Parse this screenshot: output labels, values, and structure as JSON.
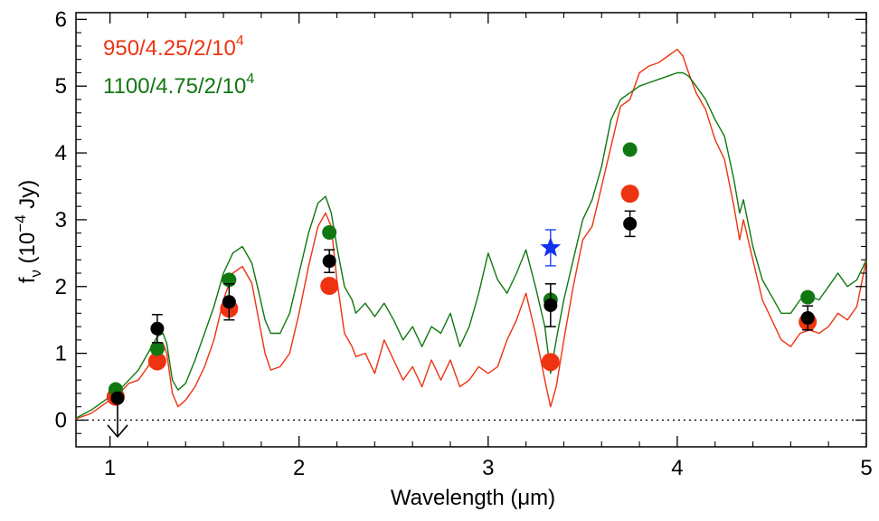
{
  "chart_data": {
    "type": "line",
    "xlabel": "Wavelength (μm)",
    "ylabel_main": "f",
    "ylabel_sub": "ν",
    "ylabel_rest": " (10",
    "ylabel_exp": "−4",
    "ylabel_unit": " Jy)",
    "xlim": [
      0.82,
      5.0
    ],
    "ylim": [
      -0.4,
      6.1
    ],
    "xticks": [
      1,
      2,
      3,
      4,
      5
    ],
    "yticks": [
      0,
      1,
      2,
      3,
      4,
      5,
      6
    ],
    "zero_line": true,
    "legend": [
      {
        "label_main": "950/4.25/2/10",
        "label_sup": "4",
        "color": "#ee3311"
      },
      {
        "label_main": "1100/4.75/2/10",
        "label_sup": "4",
        "color": "#117711"
      }
    ],
    "series": [
      {
        "color": "#ee3311",
        "x": [
          0.82,
          0.9,
          1.0,
          1.05,
          1.1,
          1.15,
          1.2,
          1.25,
          1.28,
          1.3,
          1.33,
          1.36,
          1.4,
          1.45,
          1.5,
          1.55,
          1.6,
          1.65,
          1.7,
          1.75,
          1.78,
          1.82,
          1.85,
          1.9,
          1.95,
          2.0,
          2.05,
          2.1,
          2.14,
          2.17,
          2.2,
          2.24,
          2.28,
          2.3,
          2.35,
          2.4,
          2.45,
          2.5,
          2.55,
          2.6,
          2.65,
          2.7,
          2.75,
          2.8,
          2.85,
          2.9,
          2.95,
          3.0,
          3.05,
          3.1,
          3.15,
          3.2,
          3.25,
          3.3,
          3.33,
          3.36,
          3.4,
          3.45,
          3.5,
          3.55,
          3.6,
          3.65,
          3.7,
          3.75,
          3.8,
          3.85,
          3.9,
          3.95,
          4.0,
          4.03,
          4.06,
          4.1,
          4.15,
          4.2,
          4.25,
          4.3,
          4.33,
          4.35,
          4.4,
          4.45,
          4.5,
          4.55,
          4.6,
          4.65,
          4.7,
          4.75,
          4.8,
          4.85,
          4.9,
          4.95,
          5.0
        ],
        "y": [
          0.02,
          0.1,
          0.3,
          0.4,
          0.55,
          0.6,
          0.8,
          1.05,
          1.15,
          1.0,
          0.4,
          0.2,
          0.3,
          0.5,
          0.8,
          1.2,
          1.8,
          2.2,
          2.3,
          2.05,
          1.6,
          1.0,
          0.75,
          0.8,
          1.0,
          1.6,
          2.3,
          2.9,
          3.1,
          2.9,
          2.1,
          1.3,
          1.1,
          0.95,
          1.0,
          0.7,
          1.2,
          0.9,
          0.6,
          0.8,
          0.5,
          0.9,
          0.6,
          0.9,
          0.5,
          0.6,
          0.8,
          0.7,
          0.8,
          1.2,
          1.5,
          1.9,
          1.3,
          0.6,
          0.2,
          0.5,
          1.2,
          2.0,
          2.7,
          2.9,
          3.5,
          4.1,
          4.7,
          4.8,
          5.2,
          5.3,
          5.35,
          5.45,
          5.55,
          5.45,
          5.2,
          4.9,
          4.65,
          4.2,
          3.9,
          3.2,
          2.7,
          3.0,
          2.4,
          1.8,
          1.5,
          1.2,
          1.1,
          1.3,
          1.35,
          1.3,
          1.4,
          1.6,
          1.5,
          1.7,
          2.4
        ]
      },
      {
        "color": "#117711",
        "x": [
          0.82,
          0.9,
          1.0,
          1.05,
          1.1,
          1.15,
          1.2,
          1.25,
          1.28,
          1.3,
          1.33,
          1.36,
          1.4,
          1.45,
          1.5,
          1.55,
          1.6,
          1.65,
          1.7,
          1.75,
          1.78,
          1.82,
          1.85,
          1.9,
          1.95,
          2.0,
          2.05,
          2.1,
          2.14,
          2.17,
          2.2,
          2.24,
          2.28,
          2.3,
          2.35,
          2.4,
          2.45,
          2.5,
          2.55,
          2.6,
          2.65,
          2.7,
          2.75,
          2.8,
          2.85,
          2.9,
          2.95,
          3.0,
          3.05,
          3.1,
          3.15,
          3.2,
          3.25,
          3.3,
          3.33,
          3.36,
          3.4,
          3.45,
          3.5,
          3.55,
          3.6,
          3.65,
          3.7,
          3.75,
          3.8,
          3.85,
          3.9,
          3.95,
          4.0,
          4.03,
          4.06,
          4.1,
          4.15,
          4.2,
          4.25,
          4.3,
          4.33,
          4.35,
          4.4,
          4.45,
          4.5,
          4.55,
          4.6,
          4.65,
          4.7,
          4.75,
          4.8,
          4.85,
          4.9,
          4.95,
          5.0
        ],
        "y": [
          0.03,
          0.15,
          0.35,
          0.45,
          0.6,
          0.75,
          1.0,
          1.25,
          1.3,
          1.15,
          0.6,
          0.45,
          0.55,
          0.9,
          1.3,
          1.7,
          2.2,
          2.5,
          2.6,
          2.35,
          2.0,
          1.5,
          1.3,
          1.3,
          1.6,
          2.2,
          2.8,
          3.25,
          3.35,
          3.1,
          2.6,
          2.0,
          1.8,
          1.6,
          1.75,
          1.55,
          1.75,
          1.5,
          1.2,
          1.4,
          1.1,
          1.4,
          1.3,
          1.6,
          1.1,
          1.4,
          1.9,
          2.5,
          2.1,
          1.9,
          2.2,
          2.55,
          2.0,
          1.4,
          0.7,
          1.2,
          1.8,
          2.4,
          3.0,
          3.3,
          3.8,
          4.5,
          4.8,
          4.9,
          5.0,
          5.05,
          5.1,
          5.15,
          5.2,
          5.2,
          5.15,
          5.0,
          4.8,
          4.5,
          4.25,
          3.6,
          3.1,
          3.3,
          2.6,
          2.1,
          1.85,
          1.6,
          1.6,
          1.8,
          1.85,
          1.8,
          2.0,
          2.2,
          2.0,
          2.1,
          2.4
        ]
      }
    ],
    "model_points": [
      {
        "series": 0,
        "color": "#ee3311",
        "x": [
          1.03,
          1.25,
          1.63,
          2.16,
          3.33,
          3.75,
          4.69
        ],
        "y": [
          0.35,
          0.88,
          1.67,
          2.01,
          0.87,
          3.39,
          1.47
        ]
      },
      {
        "series": 1,
        "color": "#117711",
        "x": [
          1.03,
          1.25,
          1.63,
          2.16,
          3.33,
          3.75,
          4.69
        ],
        "y": [
          0.46,
          1.07,
          2.1,
          2.81,
          1.8,
          4.05,
          1.84
        ]
      }
    ],
    "observed": {
      "color": "#000000",
      "x": [
        1.25,
        1.63,
        2.16,
        3.33,
        3.75,
        4.69
      ],
      "y": [
        1.37,
        1.77,
        2.38,
        1.72,
        2.94,
        1.53
      ],
      "yerr": [
        0.21,
        0.27,
        0.17,
        0.32,
        0.19,
        0.18
      ]
    },
    "upper_limit": {
      "x": 1.04,
      "y": 0.33,
      "arrow_to": -0.25
    },
    "star_point": {
      "color": "#1133ee",
      "x": 3.33,
      "y": 2.58,
      "yerr": 0.27
    }
  }
}
